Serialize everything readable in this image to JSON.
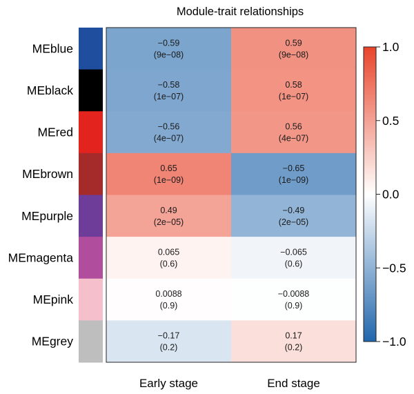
{
  "chart_data": {
    "type": "heatmap",
    "title": "Module-trait relationships",
    "rows": [
      "MEblue",
      "MEblack",
      "MEred",
      "MEbrown",
      "MEpurple",
      "MEmagenta",
      "MEpink",
      "MEgrey"
    ],
    "row_colors": [
      "#1f4e9e",
      "#000000",
      "#e3241e",
      "#a52a2a",
      "#6e3d99",
      "#b04d9d",
      "#f5bfcc",
      "#bebebe"
    ],
    "columns": [
      "Early stage",
      "End stage"
    ],
    "values": [
      [
        -0.59,
        0.59
      ],
      [
        -0.58,
        0.58
      ],
      [
        -0.56,
        0.56
      ],
      [
        0.65,
        -0.65
      ],
      [
        0.49,
        -0.49
      ],
      [
        0.065,
        -0.065
      ],
      [
        0.0088,
        -0.0088
      ],
      [
        -0.17,
        0.17
      ]
    ],
    "value_labels": [
      [
        "−0.59",
        "0.59"
      ],
      [
        "−0.58",
        "0.58"
      ],
      [
        "−0.56",
        "0.56"
      ],
      [
        "0.65",
        "−0.65"
      ],
      [
        "0.49",
        "−0.49"
      ],
      [
        "0.065",
        "−0.065"
      ],
      [
        "0.0088",
        "−0.0088"
      ],
      [
        "−0.17",
        "0.17"
      ]
    ],
    "p_values": [
      [
        "(9e−08)",
        "(9e−08)"
      ],
      [
        "(1e−07)",
        "(1e−07)"
      ],
      [
        "(4e−07)",
        "(4e−07)"
      ],
      [
        "(1e−09)",
        "(1e−09)"
      ],
      [
        "(2e−05)",
        "(2e−05)"
      ],
      [
        "(0.6)",
        "(0.6)"
      ],
      [
        "(0.9)",
        "(0.9)"
      ],
      [
        "(0.2)",
        "(0.2)"
      ]
    ],
    "colorbar": {
      "range": [
        -1.0,
        1.0
      ],
      "ticks": [
        1.0,
        0.5,
        0.0,
        -0.5,
        -1.0
      ],
      "tick_labels": [
        "1.0",
        "0.5",
        "0.0",
        "−0.5",
        "−1.0"
      ],
      "low_color": "#2166ac",
      "mid_color": "#ffffff",
      "high_color": "#e8442a"
    }
  }
}
